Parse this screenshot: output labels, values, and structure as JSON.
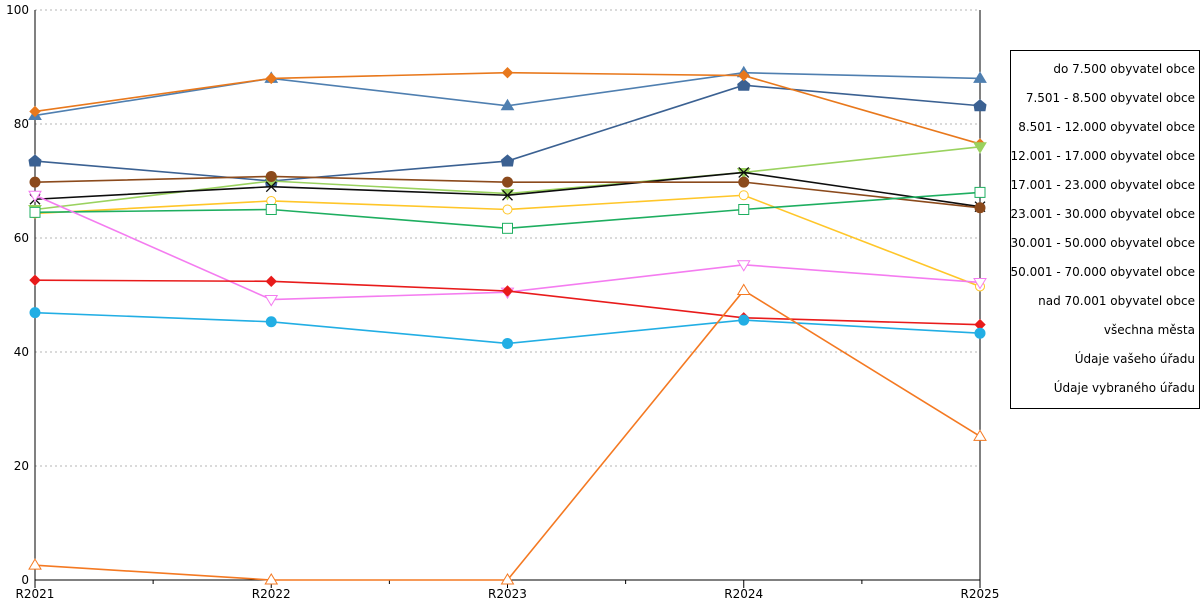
{
  "chart_data": {
    "type": "line",
    "title": "",
    "xlabel": "",
    "ylabel": "",
    "categories": [
      "R2021",
      "R2022",
      "R2023",
      "R2024",
      "R2025"
    ],
    "ylim": [
      0,
      100
    ],
    "yticks": [
      0,
      20,
      40,
      60,
      80,
      100
    ],
    "grid": true,
    "legend_position": "right",
    "series": [
      {
        "name": "do 7.500 obyvatel obce",
        "color": "#4f7fb0",
        "marker": "triangle",
        "values": [
          81.5,
          88.0,
          83.2,
          89.0,
          88.0
        ]
      },
      {
        "name": "7.501 - 8.500 obyvatel obce",
        "color": "#3b6192",
        "marker": "pentagon",
        "values": [
          73.5,
          70.0,
          73.5,
          86.8,
          83.2
        ]
      },
      {
        "name": "8.501 - 12.000 obyvatel obce",
        "color": "#e8781c",
        "marker": "diamond",
        "values": [
          82.2,
          88.0,
          89.0,
          88.5,
          76.5
        ]
      },
      {
        "name": "12.001 - 17.000 obyvatel obce",
        "color": "#9ad25f",
        "marker": "triangle-down",
        "values": [
          65.0,
          70.0,
          67.8,
          71.5,
          76.0
        ]
      },
      {
        "name": "17.001 - 23.000 obyvatel obce",
        "color": "#0d0d0d",
        "marker": "x",
        "values": [
          66.8,
          69.0,
          67.5,
          71.5,
          65.5
        ]
      },
      {
        "name": "23.001 - 30.000 obyvatel obce",
        "color": "#8b4a1c",
        "marker": "circle",
        "values": [
          69.8,
          70.8,
          69.8,
          69.8,
          65.3
        ]
      },
      {
        "name": "30.001 - 50.000 obyvatel obce",
        "color": "#ffc629",
        "marker": "circle-open",
        "values": [
          64.3,
          66.5,
          65.0,
          67.5,
          51.5
        ]
      },
      {
        "name": "50.001 - 70.000 obyvatel obce",
        "color": "#1eae60",
        "marker": "square-open",
        "values": [
          64.5,
          65.0,
          61.7,
          65.0,
          68.0
        ]
      },
      {
        "name": "nad 70.001 obyvatel obce",
        "color": "#f47cf0",
        "marker": "triangle-down-open",
        "values": [
          67.5,
          49.2,
          50.5,
          55.3,
          52.2
        ]
      },
      {
        "name": "všechna města",
        "color": "#e81b1b",
        "marker": "diamond",
        "values": [
          52.6,
          52.4,
          50.7,
          46.0,
          44.8
        ]
      },
      {
        "name": "Údaje vašeho úřadu",
        "color": "#22aee4",
        "marker": "circle",
        "values": [
          46.9,
          45.3,
          41.5,
          45.6,
          43.3
        ]
      },
      {
        "name": "Údaje vybraného úřadu",
        "color": "#f47922",
        "marker": "triangle-open",
        "values": [
          2.6,
          0.0,
          0.0,
          50.8,
          25.2
        ]
      }
    ]
  }
}
